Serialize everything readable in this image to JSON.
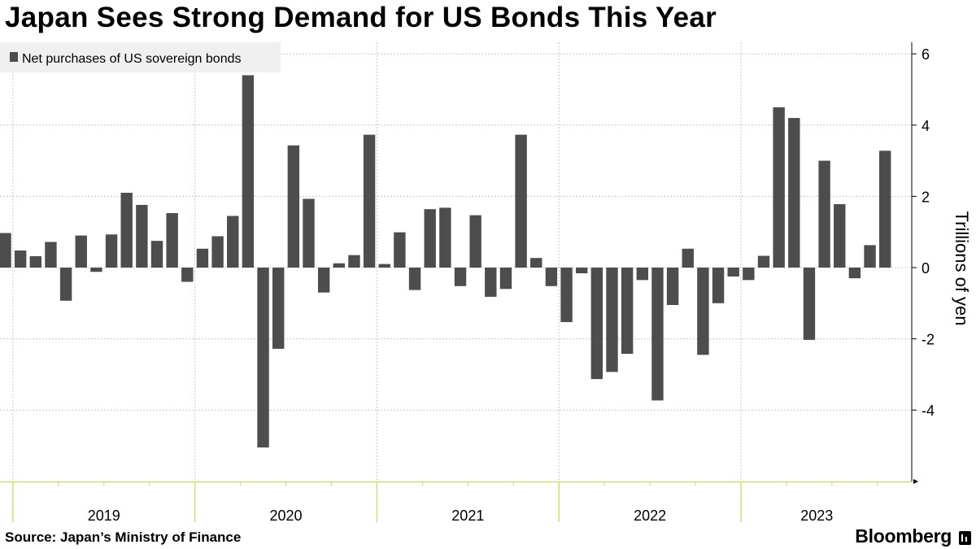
{
  "title": "Japan Sees Strong Demand for US Bonds This Year",
  "source": "Source: Japan’s Ministry of Finance",
  "brand": "Bloomberg",
  "colors": {
    "bar": "#4d4d4d",
    "axis_accent": "#c8e07a",
    "grid": "#c8c8c8",
    "legend_bg": "#f0f0f0"
  },
  "chart_data": {
    "type": "bar",
    "title": "Japan Sees Strong Demand for US Bonds This Year",
    "legend": [
      "Net purchases of US sovereign bonds"
    ],
    "legend_position": "top-left",
    "ylabel": "Trillions of yen",
    "ylim": [
      -6,
      6.5
    ],
    "yticks": [
      6,
      4,
      2,
      0,
      -2,
      -4
    ],
    "year_labels": [
      "2019",
      "2020",
      "2021",
      "2022",
      "2023"
    ],
    "categories": [
      "2018-12",
      "2019-01",
      "2019-02",
      "2019-03",
      "2019-04",
      "2019-05",
      "2019-06",
      "2019-07",
      "2019-08",
      "2019-09",
      "2019-10",
      "2019-11",
      "2019-12",
      "2020-01",
      "2020-02",
      "2020-03",
      "2020-04",
      "2020-05",
      "2020-06",
      "2020-07",
      "2020-08",
      "2020-09",
      "2020-10",
      "2020-11",
      "2020-12",
      "2021-01",
      "2021-02",
      "2021-03",
      "2021-04",
      "2021-05",
      "2021-06",
      "2021-07",
      "2021-08",
      "2021-09",
      "2021-10",
      "2021-11",
      "2021-12",
      "2022-01",
      "2022-02",
      "2022-03",
      "2022-04",
      "2022-05",
      "2022-06",
      "2022-07",
      "2022-08",
      "2022-09",
      "2022-10",
      "2022-11",
      "2022-12",
      "2023-01",
      "2023-02",
      "2023-03",
      "2023-04",
      "2023-05",
      "2023-06",
      "2023-07",
      "2023-08",
      "2023-09",
      "2023-10"
    ],
    "series": [
      {
        "name": "Net purchases of US sovereign bonds",
        "values": [
          0.97,
          0.48,
          0.32,
          0.72,
          -0.93,
          0.9,
          -0.12,
          0.93,
          2.1,
          1.76,
          0.75,
          1.53,
          -0.4,
          0.53,
          0.88,
          1.45,
          5.4,
          -5.05,
          -2.28,
          3.43,
          1.93,
          -0.7,
          0.12,
          0.35,
          3.73,
          0.1,
          0.99,
          -0.63,
          1.64,
          1.68,
          -0.52,
          1.47,
          -0.82,
          -0.6,
          3.73,
          0.27,
          -0.52,
          -1.53,
          -0.16,
          -3.13,
          -2.93,
          -2.42,
          -0.35,
          -3.73,
          -1.05,
          0.53,
          -2.45,
          -1.0,
          -0.25,
          -0.35,
          0.33,
          4.5,
          4.2,
          -2.03,
          3.0,
          1.78,
          -0.3,
          0.63,
          3.28
        ]
      }
    ]
  }
}
